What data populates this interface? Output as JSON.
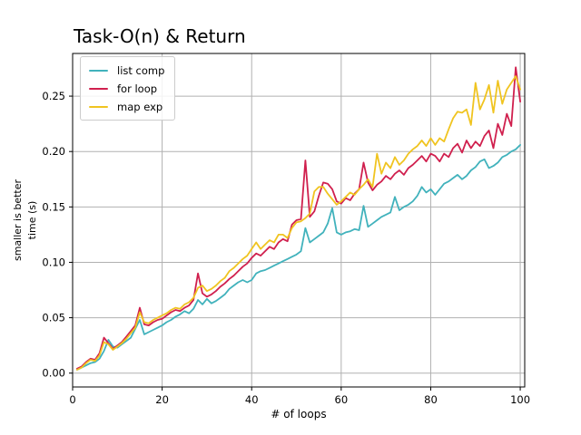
{
  "figure": {
    "title": "Task-O(n) & Return",
    "xlabel": "# of loops",
    "ylabel_line1": "smaller is better",
    "ylabel_line2": "time (s)",
    "background_color": "#ffffff",
    "grid_color": "#b0b0b0",
    "spine_color": "#000000",
    "text_color": "#000000"
  },
  "legend": {
    "position": "upper left",
    "items": [
      {
        "label": "list comp",
        "color": "#41b2bc"
      },
      {
        "label": "for loop",
        "color": "#d0204e"
      },
      {
        "label": "map exp",
        "color": "#f0c420"
      }
    ]
  },
  "chart_data": {
    "type": "line",
    "title": "Task-O(n) & Return",
    "xlabel": "# of loops",
    "ylabel": "smaller is better time (s)",
    "grid": true,
    "legend_position": "upper left",
    "xlim": [
      0,
      101
    ],
    "ylim": [
      -0.0125,
      0.2885
    ],
    "xticks": [
      0,
      20,
      40,
      60,
      80,
      100
    ],
    "xtick_labels": [
      "0",
      "20",
      "40",
      "60",
      "80",
      "100"
    ],
    "yticks": [
      0.0,
      0.05,
      0.1,
      0.15,
      0.2,
      0.25
    ],
    "ytick_labels": [
      "0.00",
      "0.05",
      "0.10",
      "0.15",
      "0.20",
      "0.25"
    ],
    "x": [
      1,
      2,
      3,
      4,
      5,
      6,
      7,
      8,
      9,
      10,
      11,
      12,
      13,
      14,
      15,
      16,
      17,
      18,
      19,
      20,
      21,
      22,
      23,
      24,
      25,
      26,
      27,
      28,
      29,
      30,
      31,
      32,
      33,
      34,
      35,
      36,
      37,
      38,
      39,
      40,
      41,
      42,
      43,
      44,
      45,
      46,
      47,
      48,
      49,
      50,
      51,
      52,
      53,
      54,
      55,
      56,
      57,
      58,
      59,
      60,
      61,
      62,
      63,
      64,
      65,
      66,
      67,
      68,
      69,
      70,
      71,
      72,
      73,
      74,
      75,
      76,
      77,
      78,
      79,
      80,
      81,
      82,
      83,
      84,
      85,
      86,
      87,
      88,
      89,
      90,
      91,
      92,
      93,
      94,
      95,
      96,
      97,
      98,
      99,
      100
    ],
    "series": [
      {
        "name": "list comp",
        "color": "#41b2bc",
        "values": [
          0.003,
          0.005,
          0.007,
          0.009,
          0.01,
          0.013,
          0.02,
          0.03,
          0.024,
          0.023,
          0.026,
          0.029,
          0.032,
          0.04,
          0.048,
          0.035,
          0.037,
          0.039,
          0.041,
          0.043,
          0.046,
          0.048,
          0.051,
          0.053,
          0.056,
          0.054,
          0.058,
          0.066,
          0.062,
          0.067,
          0.063,
          0.065,
          0.068,
          0.071,
          0.076,
          0.079,
          0.082,
          0.084,
          0.082,
          0.084,
          0.09,
          0.092,
          0.093,
          0.095,
          0.097,
          0.099,
          0.101,
          0.103,
          0.105,
          0.107,
          0.11,
          0.131,
          0.118,
          0.121,
          0.124,
          0.127,
          0.135,
          0.149,
          0.127,
          0.125,
          0.127,
          0.128,
          0.13,
          0.129,
          0.151,
          0.132,
          0.135,
          0.138,
          0.141,
          0.143,
          0.145,
          0.159,
          0.147,
          0.15,
          0.152,
          0.155,
          0.16,
          0.168,
          0.163,
          0.166,
          0.161,
          0.166,
          0.171,
          0.173,
          0.176,
          0.179,
          0.175,
          0.178,
          0.183,
          0.186,
          0.191,
          0.193,
          0.185,
          0.187,
          0.19,
          0.195,
          0.197,
          0.2,
          0.202,
          0.206
        ]
      },
      {
        "name": "for loop",
        "color": "#d0204e",
        "values": [
          0.004,
          0.006,
          0.01,
          0.013,
          0.012,
          0.018,
          0.032,
          0.027,
          0.022,
          0.025,
          0.028,
          0.033,
          0.038,
          0.043,
          0.059,
          0.044,
          0.043,
          0.046,
          0.048,
          0.049,
          0.052,
          0.055,
          0.057,
          0.056,
          0.059,
          0.061,
          0.066,
          0.09,
          0.072,
          0.069,
          0.071,
          0.074,
          0.078,
          0.081,
          0.085,
          0.088,
          0.092,
          0.096,
          0.099,
          0.104,
          0.108,
          0.106,
          0.11,
          0.114,
          0.112,
          0.118,
          0.121,
          0.119,
          0.134,
          0.138,
          0.139,
          0.192,
          0.141,
          0.146,
          0.16,
          0.172,
          0.171,
          0.166,
          0.155,
          0.153,
          0.158,
          0.156,
          0.162,
          0.166,
          0.19,
          0.172,
          0.165,
          0.17,
          0.173,
          0.178,
          0.175,
          0.18,
          0.183,
          0.179,
          0.185,
          0.188,
          0.192,
          0.196,
          0.191,
          0.198,
          0.196,
          0.191,
          0.198,
          0.195,
          0.203,
          0.207,
          0.199,
          0.21,
          0.203,
          0.209,
          0.205,
          0.214,
          0.219,
          0.203,
          0.225,
          0.215,
          0.234,
          0.223,
          0.276,
          0.245
        ]
      },
      {
        "name": "map exp",
        "color": "#f0c420",
        "values": [
          0.003,
          0.005,
          0.009,
          0.012,
          0.011,
          0.016,
          0.028,
          0.026,
          0.021,
          0.024,
          0.027,
          0.031,
          0.036,
          0.041,
          0.055,
          0.046,
          0.045,
          0.048,
          0.05,
          0.052,
          0.054,
          0.057,
          0.059,
          0.058,
          0.062,
          0.064,
          0.068,
          0.077,
          0.079,
          0.074,
          0.076,
          0.079,
          0.083,
          0.086,
          0.092,
          0.095,
          0.099,
          0.103,
          0.106,
          0.112,
          0.118,
          0.112,
          0.116,
          0.12,
          0.118,
          0.125,
          0.125,
          0.122,
          0.131,
          0.136,
          0.137,
          0.14,
          0.144,
          0.164,
          0.168,
          0.168,
          0.162,
          0.157,
          0.152,
          0.155,
          0.159,
          0.163,
          0.161,
          0.166,
          0.17,
          0.175,
          0.168,
          0.198,
          0.18,
          0.19,
          0.185,
          0.195,
          0.188,
          0.192,
          0.198,
          0.202,
          0.205,
          0.21,
          0.205,
          0.212,
          0.206,
          0.212,
          0.209,
          0.22,
          0.23,
          0.236,
          0.235,
          0.238,
          0.224,
          0.262,
          0.238,
          0.247,
          0.26,
          0.235,
          0.264,
          0.243,
          0.256,
          0.262,
          0.268,
          0.256
        ]
      }
    ]
  }
}
